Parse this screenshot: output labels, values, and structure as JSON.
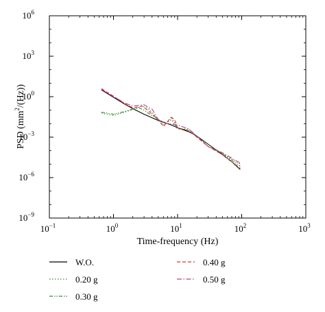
{
  "chart_data": {
    "type": "line",
    "title": "",
    "xlabel": "Time-frequency (Hz)",
    "ylabel_base": "PSD (mm",
    "ylabel_sup": "2",
    "ylabel_tail": "/(Hz))",
    "xscale": "log",
    "yscale": "log",
    "xlim": [
      0.1,
      1000
    ],
    "ylim": [
      1e-09,
      1000000.0
    ],
    "grid": false,
    "legend_position": "bottom",
    "x_ticks": [
      {
        "base": "10",
        "exp": "−1",
        "value": 0.1
      },
      {
        "base": "10",
        "exp": "0",
        "value": 1
      },
      {
        "base": "10",
        "exp": "1",
        "value": 10
      },
      {
        "base": "10",
        "exp": "2",
        "value": 100
      },
      {
        "base": "10",
        "exp": "3",
        "value": 1000
      }
    ],
    "y_ticks": [
      {
        "base": "10",
        "exp": "−9",
        "value": 1e-09
      },
      {
        "base": "10",
        "exp": "−6",
        "value": 1e-06
      },
      {
        "base": "10",
        "exp": "−3",
        "value": 0.001
      },
      {
        "base": "10",
        "exp": "0",
        "value": 1
      },
      {
        "base": "10",
        "exp": "3",
        "value": 1000
      },
      {
        "base": "10",
        "exp": "6",
        "value": 1000000.0
      }
    ],
    "series": [
      {
        "name": "W.O.",
        "color": "#000000",
        "dash": "",
        "x": [
          0.65,
          1.0,
          1.5,
          2.0,
          3.0,
          5.0,
          8.0,
          10.0,
          15.0,
          20.0,
          30.0,
          50.0,
          70.0,
          95.0
        ],
        "y": [
          3.2,
          0.9,
          0.28,
          0.13,
          0.05,
          0.017,
          0.008,
          0.005,
          0.0025,
          0.0012,
          0.0003,
          5e-05,
          1.5e-05,
          4e-06
        ]
      },
      {
        "name": "0.20 g",
        "color": "#3a7f3a",
        "dash": "1.5,2.5",
        "x": [
          0.65,
          1.0,
          2.0,
          2.8,
          3.5,
          5.0,
          6.0,
          8.0,
          10.0,
          15.0,
          20.0,
          30.0,
          50.0,
          95.0
        ],
        "y": [
          0.06,
          0.04,
          0.11,
          0.2,
          0.13,
          0.02,
          0.008,
          0.02,
          0.004,
          0.004,
          0.001,
          0.0003,
          6e-05,
          1e-05
        ]
      },
      {
        "name": "0.30 g",
        "color": "#2e8b2e",
        "dash": "5,2,1.5,2,1.5,2",
        "x": [
          0.65,
          1.0,
          1.5,
          2.0,
          2.5,
          3.0,
          3.5,
          5.0,
          6.5,
          8.0,
          10.0,
          15.0,
          20.0,
          30.0,
          50.0,
          95.0
        ],
        "y": [
          0.07,
          0.05,
          0.08,
          0.12,
          0.15,
          0.1,
          0.06,
          0.02,
          0.01,
          0.03,
          0.005,
          0.003,
          0.0012,
          0.0002,
          6e-05,
          7e-06
        ]
      },
      {
        "name": "0.40 g",
        "color": "#e03030",
        "dash": "5,3",
        "x": [
          0.65,
          1.0,
          1.5,
          2.0,
          2.8,
          3.5,
          5.0,
          6.0,
          8.0,
          9.0,
          10.0,
          15.0,
          20.0,
          30.0,
          50.0,
          95.0
        ],
        "y": [
          4.0,
          1.1,
          0.3,
          0.15,
          0.2,
          0.09,
          0.02,
          0.006,
          0.03,
          0.02,
          0.005,
          0.003,
          0.001,
          0.0002,
          5e-05,
          5e-06
        ]
      },
      {
        "name": "0.50 g",
        "color": "#b0408a",
        "dash": "7,2.5,1.5,2.5",
        "x": [
          0.65,
          1.0,
          1.5,
          2.0,
          3.0,
          4.0,
          5.0,
          7.0,
          10.0,
          15.0,
          20.0,
          30.0,
          50.0,
          95.0
        ],
        "y": [
          3.5,
          1.0,
          0.35,
          0.2,
          0.25,
          0.12,
          0.02,
          0.01,
          0.008,
          0.004,
          0.0012,
          0.0002,
          7e-05,
          1.2e-05
        ]
      }
    ]
  }
}
